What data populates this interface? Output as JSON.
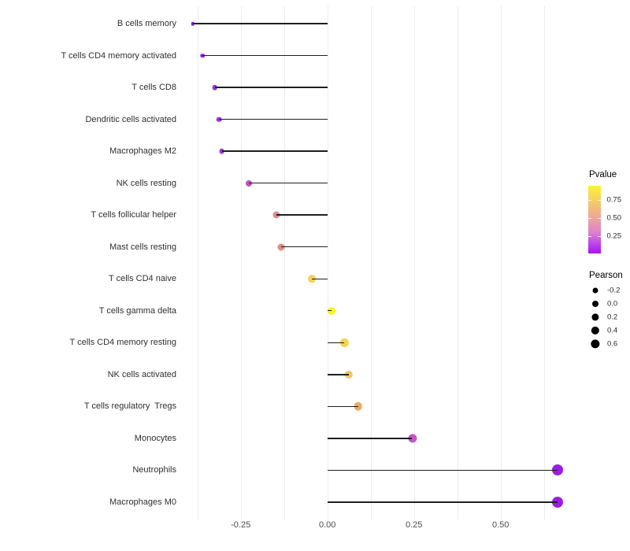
{
  "chart_data": {
    "type": "lollipop",
    "title": "",
    "xlabel": "",
    "ylabel": "",
    "grid": "vertical-only",
    "background_color": "#ffffff",
    "gridline_color": "#ececec",
    "stem_color": "#1f1f1f",
    "x_range": [
      -0.405,
      0.687
    ],
    "x_ticks": [
      {
        "label": "-0.25",
        "value": -0.25
      },
      {
        "label": "0.00",
        "value": 0.0
      },
      {
        "label": "0.25",
        "value": 0.25
      },
      {
        "label": "0.50",
        "value": 0.5
      }
    ],
    "gridline_values": [
      -0.375,
      -0.25,
      -0.125,
      0.0,
      0.125,
      0.25,
      0.375,
      0.5,
      0.625
    ],
    "baseline_value": 0.0,
    "points": [
      {
        "label": "B cells memory",
        "pearson": -0.388,
        "dot_color": "#8526ce",
        "dot_size": 4.5
      },
      {
        "label": "T cells CD4 memory activated",
        "pearson": -0.36,
        "dot_color": "#9029d4",
        "dot_size": 5.5
      },
      {
        "label": "T cells CD8",
        "pearson": -0.325,
        "dot_color": "#9a31da",
        "dot_size": 6.5
      },
      {
        "label": "Dendritic cells activated",
        "pearson": -0.312,
        "dot_color": "#9c34db",
        "dot_size": 6.6
      },
      {
        "label": "Macrophages M2",
        "pearson": -0.305,
        "dot_color": "#9c39d9",
        "dot_size": 6.8
      },
      {
        "label": "NK cells resting",
        "pearson": -0.226,
        "dot_color": "#c24fc6",
        "dot_size": 8.0
      },
      {
        "label": "T cells follicular helper",
        "pearson": -0.148,
        "dot_color": "#df8b90",
        "dot_size": 9.0
      },
      {
        "label": "Mast cells resting",
        "pearson": -0.133,
        "dot_color": "#df8e84",
        "dot_size": 9.0
      },
      {
        "label": "T cells CD4 naive",
        "pearson": -0.045,
        "dot_color": "#f4d24f",
        "dot_size": 9.7
      },
      {
        "label": "T cells gamma delta",
        "pearson": 0.012,
        "dot_color": "#fbf41b",
        "dot_size": 10.0
      },
      {
        "label": "T cells CD4 memory resting",
        "pearson": 0.049,
        "dot_color": "#f4d54c",
        "dot_size": 10.3
      },
      {
        "label": "NK cells activated",
        "pearson": 0.061,
        "dot_color": "#f2c85b",
        "dot_size": 10.3
      },
      {
        "label": "T cells regulatory  Tregs",
        "pearson": 0.089,
        "dot_color": "#edaa60",
        "dot_size": 10.6
      },
      {
        "label": "Monocytes",
        "pearson": 0.245,
        "dot_color": "#c454c8",
        "dot_size": 11.3
      },
      {
        "label": "Neutrophils",
        "pearson": 0.664,
        "dot_color": "#9c1be4",
        "dot_size": 14.0
      },
      {
        "label": "Macrophages M0",
        "pearson": 0.665,
        "dot_color": "#9c1be4",
        "dot_size": 14.0
      }
    ],
    "legend_pvalue": {
      "title": "Pvalue",
      "bar_range": [
        0.01,
        0.95
      ],
      "ticks": [
        {
          "label": "0.75",
          "value": 0.75
        },
        {
          "label": "0.50",
          "value": 0.5
        },
        {
          "label": "0.25",
          "value": 0.25
        }
      ],
      "gradient_stops": [
        {
          "color": "#fbf335",
          "pos": 0
        },
        {
          "color": "#f7da55",
          "pos": 15
        },
        {
          "color": "#f1b97e",
          "pos": 35
        },
        {
          "color": "#ea9fa4",
          "pos": 52
        },
        {
          "color": "#dd7fd0",
          "pos": 70
        },
        {
          "color": "#bb3bef",
          "pos": 88
        },
        {
          "color": "#a317f1",
          "pos": 100
        }
      ]
    },
    "legend_pearson": {
      "title": "Pearson",
      "dot_color": "#000000",
      "entries": [
        {
          "label": "-0.2",
          "dot_size": 7.0
        },
        {
          "label": "0.0",
          "dot_size": 8.0
        },
        {
          "label": "0.2",
          "dot_size": 9.2
        },
        {
          "label": "0.4",
          "dot_size": 10.3
        },
        {
          "label": "0.6",
          "dot_size": 11.3
        }
      ]
    }
  }
}
